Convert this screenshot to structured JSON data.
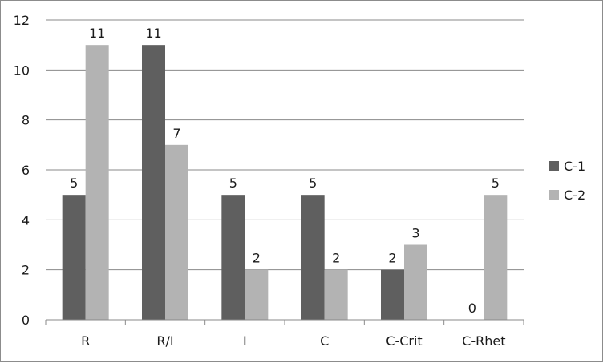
{
  "chart_data": {
    "type": "bar",
    "categories": [
      "R",
      "R/I",
      "I",
      "C",
      "C-Crit",
      "C-Rhet"
    ],
    "series": [
      {
        "name": "C-1",
        "values": [
          5,
          11,
          5,
          5,
          2,
          0
        ],
        "color": "#5f5f5f"
      },
      {
        "name": "C-2",
        "values": [
          11,
          7,
          2,
          2,
          3,
          5
        ],
        "color": "#b3b3b3"
      }
    ],
    "ylim": [
      0,
      12
    ],
    "yticks": [
      0,
      2,
      4,
      6,
      8,
      10,
      12
    ],
    "grid": true,
    "data_labels": true,
    "legend_position": "right",
    "title": "",
    "xlabel": "",
    "ylabel": ""
  }
}
